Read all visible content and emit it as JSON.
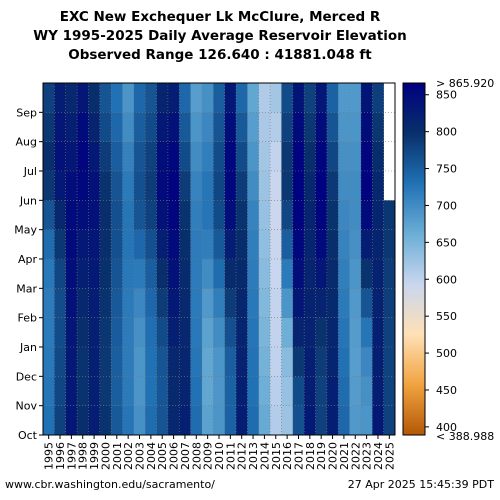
{
  "title_lines": [
    "EXC New Exchequer Lk McClure, Merced R",
    "WY 1995-2025 Daily Average Reservoir Elevation",
    "Observed Range 126.640 : 41881.048 ft"
  ],
  "footer": {
    "source": "www.cbr.washington.edu/sacramento/",
    "timestamp": "27 Apr 2025 15:45:39 PDT"
  },
  "chart_data": {
    "type": "heatmap",
    "x": [
      "1995",
      "1996",
      "1997",
      "1998",
      "1999",
      "2000",
      "2001",
      "2002",
      "2003",
      "2004",
      "2005",
      "2006",
      "2007",
      "2008",
      "2009",
      "2010",
      "2011",
      "2012",
      "2013",
      "2014",
      "2015",
      "2016",
      "2017",
      "2018",
      "2019",
      "2020",
      "2021",
      "2022",
      "2023",
      "2024",
      "2025"
    ],
    "y": [
      "Oct",
      "Nov",
      "Dec",
      "Jan",
      "Feb",
      "Mar",
      "Apr",
      "May",
      "Jun",
      "Jul",
      "Aug",
      "Sep"
    ],
    "xlabel": "",
    "ylabel": "",
    "colorbar": {
      "ticks": [
        400,
        450,
        500,
        550,
        600,
        650,
        700,
        750,
        800,
        850
      ],
      "min": 388.988,
      "max": 865.92,
      "max_label": "> 865.920",
      "min_label": "< 388.988",
      "colors": [
        "#b35806",
        "#f1a340",
        "#fee0b6",
        "#c9d6ef",
        "#6baed6",
        "#2171b5",
        "#08306b",
        "#000080"
      ]
    },
    "values": [
      [
        730,
        725,
        722,
        720,
        718,
        722,
        735,
        760,
        790,
        800,
        790,
        780
      ],
      [
        780,
        775,
        772,
        770,
        768,
        775,
        790,
        810,
        830,
        840,
        835,
        825
      ],
      [
        835,
        830,
        830,
        835,
        840,
        845,
        850,
        850,
        845,
        835,
        820,
        810
      ],
      [
        800,
        795,
        795,
        800,
        810,
        820,
        830,
        845,
        855,
        858,
        850,
        835
      ],
      [
        825,
        820,
        820,
        822,
        825,
        830,
        835,
        840,
        840,
        830,
        815,
        800
      ],
      [
        795,
        790,
        790,
        792,
        795,
        798,
        800,
        800,
        795,
        785,
        770,
        760
      ],
      [
        755,
        750,
        750,
        752,
        755,
        760,
        765,
        765,
        760,
        750,
        740,
        730
      ],
      [
        725,
        720,
        718,
        718,
        720,
        722,
        725,
        725,
        720,
        712,
        700,
        690
      ],
      [
        695,
        690,
        690,
        695,
        705,
        720,
        740,
        760,
        765,
        760,
        750,
        740
      ],
      [
        735,
        730,
        730,
        732,
        740,
        750,
        765,
        780,
        785,
        780,
        770,
        760
      ],
      [
        760,
        758,
        760,
        770,
        785,
        800,
        820,
        840,
        850,
        845,
        830,
        815
      ],
      [
        810,
        808,
        810,
        820,
        830,
        840,
        850,
        858,
        860,
        855,
        840,
        825
      ],
      [
        820,
        815,
        812,
        810,
        808,
        805,
        800,
        795,
        785,
        770,
        755,
        740
      ],
      [
        735,
        730,
        725,
        722,
        720,
        718,
        718,
        715,
        710,
        700,
        690,
        680
      ],
      [
        675,
        670,
        670,
        675,
        685,
        700,
        715,
        725,
        725,
        715,
        705,
        695
      ],
      [
        690,
        688,
        690,
        700,
        715,
        735,
        755,
        770,
        775,
        770,
        760,
        750
      ],
      [
        745,
        745,
        750,
        765,
        785,
        805,
        825,
        845,
        855,
        855,
        845,
        830
      ],
      [
        825,
        820,
        818,
        815,
        812,
        808,
        802,
        795,
        785,
        770,
        755,
        740
      ],
      [
        735,
        730,
        728,
        725,
        722,
        718,
        715,
        710,
        700,
        690,
        680,
        670
      ],
      [
        665,
        660,
        655,
        650,
        645,
        640,
        635,
        630,
        625,
        620,
        615,
        612
      ],
      [
        610,
        605,
        600,
        598,
        596,
        594,
        592,
        590,
        592,
        598,
        610,
        620
      ],
      [
        625,
        630,
        640,
        660,
        690,
        720,
        750,
        775,
        790,
        790,
        780,
        770
      ],
      [
        765,
        770,
        790,
        815,
        835,
        845,
        855,
        860,
        862,
        860,
        850,
        838
      ],
      [
        830,
        825,
        820,
        818,
        816,
        815,
        815,
        815,
        810,
        800,
        790,
        780
      ],
      [
        780,
        780,
        785,
        795,
        815,
        835,
        850,
        858,
        862,
        858,
        848,
        835
      ],
      [
        825,
        820,
        815,
        812,
        808,
        805,
        800,
        795,
        788,
        775,
        760,
        745
      ],
      [
        740,
        735,
        730,
        725,
        720,
        715,
        710,
        705,
        700,
        695,
        690,
        685
      ],
      [
        685,
        682,
        680,
        682,
        685,
        690,
        695,
        700,
        700,
        695,
        690,
        685
      ],
      [
        690,
        695,
        705,
        725,
        760,
        795,
        825,
        850,
        860,
        858,
        848,
        838
      ],
      [
        830,
        825,
        822,
        820,
        818,
        816,
        815,
        814,
        810,
        802,
        792,
        782
      ],
      [
        780,
        778,
        778,
        780,
        782,
        785,
        790,
        792,
        null,
        null,
        null,
        null
      ]
    ]
  }
}
